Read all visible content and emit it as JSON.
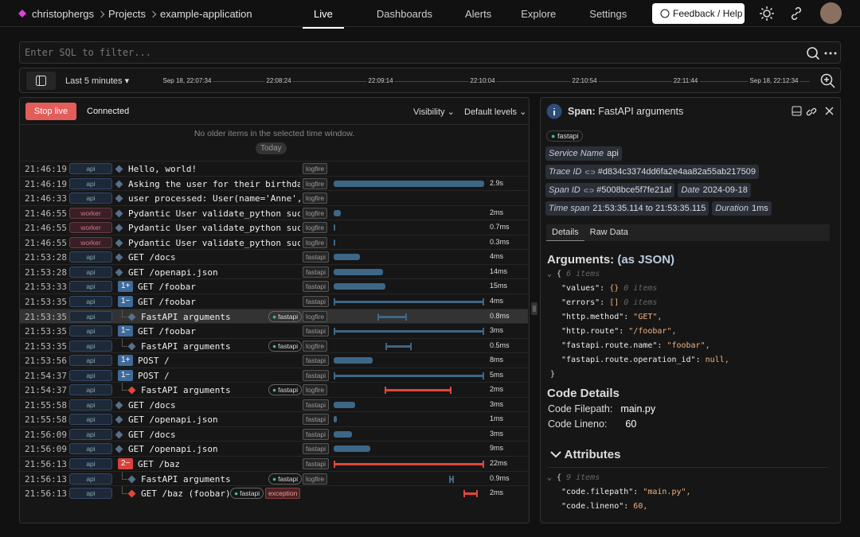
{
  "nav": {
    "breadcrumb": [
      "christophergs",
      "Projects",
      "example-application"
    ],
    "tabs": [
      "Live",
      "Dashboards",
      "Alerts",
      "Explore",
      "Settings"
    ],
    "help": "Feedback / Help"
  },
  "query": {
    "placeholder": "Enter SQL to filter..."
  },
  "timeline": {
    "range": "Last 5 minutes",
    "ticks": [
      "Sep 18, 22:07:34",
      "22:08:24",
      "22:09:14",
      "22:10:04",
      "22:10:54",
      "22:11:44",
      "Sep 18, 22:12:34"
    ]
  },
  "live": {
    "stop": "Stop live",
    "status": "Connected",
    "visibility": "Visibility",
    "levels": "Default levels",
    "notice": "No older items in the selected time window.",
    "today": "Today",
    "rows": [
      {
        "time": "21:46:19",
        "service": "api",
        "message": "Hello, world!",
        "tags": [
          "logfire"
        ]
      },
      {
        "time": "21:46:19",
        "service": "api",
        "message": "Asking the user for their birthday",
        "tags": [
          "logfire"
        ],
        "duration": "2.9s"
      },
      {
        "time": "21:46:33",
        "service": "api",
        "message": "user processed: User(name='Anne', c",
        "tags": [
          "logfire"
        ]
      },
      {
        "time": "21:46:55",
        "service": "worker",
        "message": "Pydantic User validate_python succe",
        "tags": [
          "logfire"
        ],
        "duration": "2ms"
      },
      {
        "time": "21:46:55",
        "service": "worker",
        "message": "Pydantic User validate_python succe",
        "tags": [
          "logfire"
        ],
        "duration": "0.7ms"
      },
      {
        "time": "21:46:55",
        "service": "worker",
        "message": "Pydantic User validate_python succe",
        "tags": [
          "logfire"
        ],
        "duration": "0.3ms"
      },
      {
        "time": "21:53:28",
        "service": "api",
        "message": "GET /docs",
        "tags": [
          "fastapi"
        ],
        "duration": "4ms"
      },
      {
        "time": "21:53:28",
        "service": "api",
        "message": "GET /openapi.json",
        "tags": [
          "fastapi"
        ],
        "duration": "14ms"
      },
      {
        "time": "21:53:33",
        "service": "api",
        "badge": "1+",
        "message": "GET /foobar",
        "tags": [
          "fastapi"
        ],
        "duration": "15ms"
      },
      {
        "time": "21:53:35",
        "service": "api",
        "badge": "1−",
        "message": "GET /foobar",
        "tags": [
          "fastapi"
        ],
        "duration": "4ms"
      },
      {
        "time": "21:53:35",
        "service": "api",
        "message": "FastAPI arguments",
        "pills": [
          "fastapi"
        ],
        "tags": [
          "logfire"
        ],
        "duration": "0.8ms"
      },
      {
        "time": "21:53:35",
        "service": "api",
        "badge": "1−",
        "message": "GET /foobar",
        "tags": [
          "fastapi"
        ],
        "duration": "3ms"
      },
      {
        "time": "21:53:35",
        "service": "api",
        "message": "FastAPI arguments",
        "pills": [
          "fastapi"
        ],
        "tags": [
          "logfire"
        ],
        "duration": "0.5ms"
      },
      {
        "time": "21:53:56",
        "service": "api",
        "badge": "1+",
        "message": "POST /",
        "tags": [
          "fastapi"
        ],
        "duration": "8ms"
      },
      {
        "time": "21:54:37",
        "service": "api",
        "badge": "1−",
        "message": "POST /",
        "tags": [
          "fastapi"
        ],
        "duration": "5ms"
      },
      {
        "time": "21:54:37",
        "service": "api",
        "message": "FastAPI arguments",
        "pills": [
          "fastapi"
        ],
        "tags": [
          "logfire"
        ],
        "duration": "2ms"
      },
      {
        "time": "21:55:58",
        "service": "api",
        "message": "GET /docs",
        "tags": [
          "fastapi"
        ],
        "duration": "3ms"
      },
      {
        "time": "21:55:58",
        "service": "api",
        "message": "GET /openapi.json",
        "tags": [
          "fastapi"
        ],
        "duration": "1ms"
      },
      {
        "time": "21:56:09",
        "service": "api",
        "message": "GET /docs",
        "tags": [
          "fastapi"
        ],
        "duration": "3ms"
      },
      {
        "time": "21:56:09",
        "service": "api",
        "message": "GET /openapi.json",
        "tags": [
          "fastapi"
        ],
        "duration": "9ms"
      },
      {
        "time": "21:56:13",
        "service": "api",
        "badge": "2−",
        "message": "GET /baz",
        "tags": [
          "fastapi"
        ],
        "duration": "22ms"
      },
      {
        "time": "21:56:13",
        "service": "api",
        "message": "FastAPI arguments",
        "pills": [
          "fastapi"
        ],
        "tags": [
          "logfire"
        ],
        "duration": "0.9ms"
      },
      {
        "time": "21:56:13",
        "service": "api",
        "message": "GET /baz (foobar)",
        "pills": [
          "fastapi"
        ],
        "tags": [
          "exception"
        ],
        "duration": "2ms"
      }
    ]
  },
  "span": {
    "label": "Span:",
    "title": "FastAPI arguments",
    "tag": "fastapi",
    "fields": [
      [
        "Service Name",
        "api"
      ],
      [
        "Trace ID",
        "#d834c3374dd6fa2e4aa82a55ab217509"
      ],
      [
        "Span ID",
        "#5008bce5f7fe21af"
      ],
      [
        "Date",
        "2024-09-18"
      ],
      [
        "Time span",
        "21:53:35.114 to 21:53:35.115"
      ],
      [
        "Duration",
        "1ms"
      ]
    ],
    "tabs": [
      "Details",
      "Raw Data"
    ],
    "arguments": {
      "heading": "Arguments:",
      "suffix": "(as JSON)",
      "open": "{",
      "count": "6 items",
      "close": "}",
      "lines": [
        {
          "key": "\"values\":",
          "value": "{}",
          "note": "0 items"
        },
        {
          "key": "\"errors\":",
          "value": "[]",
          "note": "0 items"
        },
        {
          "key": "\"http.method\":",
          "value": "\"GET\","
        },
        {
          "key": "\"http.route\":",
          "value": "\"/foobar\","
        },
        {
          "key": "\"fastapi.route.name\":",
          "value": "\"foobar\","
        },
        {
          "key": "\"fastapi.route.operation_id\":",
          "value": "null,"
        }
      ]
    },
    "code": {
      "heading": "Code Details",
      "rows": [
        [
          "Code Filepath:",
          "main.py"
        ],
        [
          "Code Lineno:",
          "60"
        ]
      ]
    },
    "attributes": {
      "heading": "Attributes",
      "open": "{",
      "count": "9 items",
      "lines": [
        {
          "key": "\"code.filepath\":",
          "value": "\"main.py\","
        },
        {
          "key": "\"code.lineno\":",
          "value": "60,"
        }
      ]
    }
  }
}
